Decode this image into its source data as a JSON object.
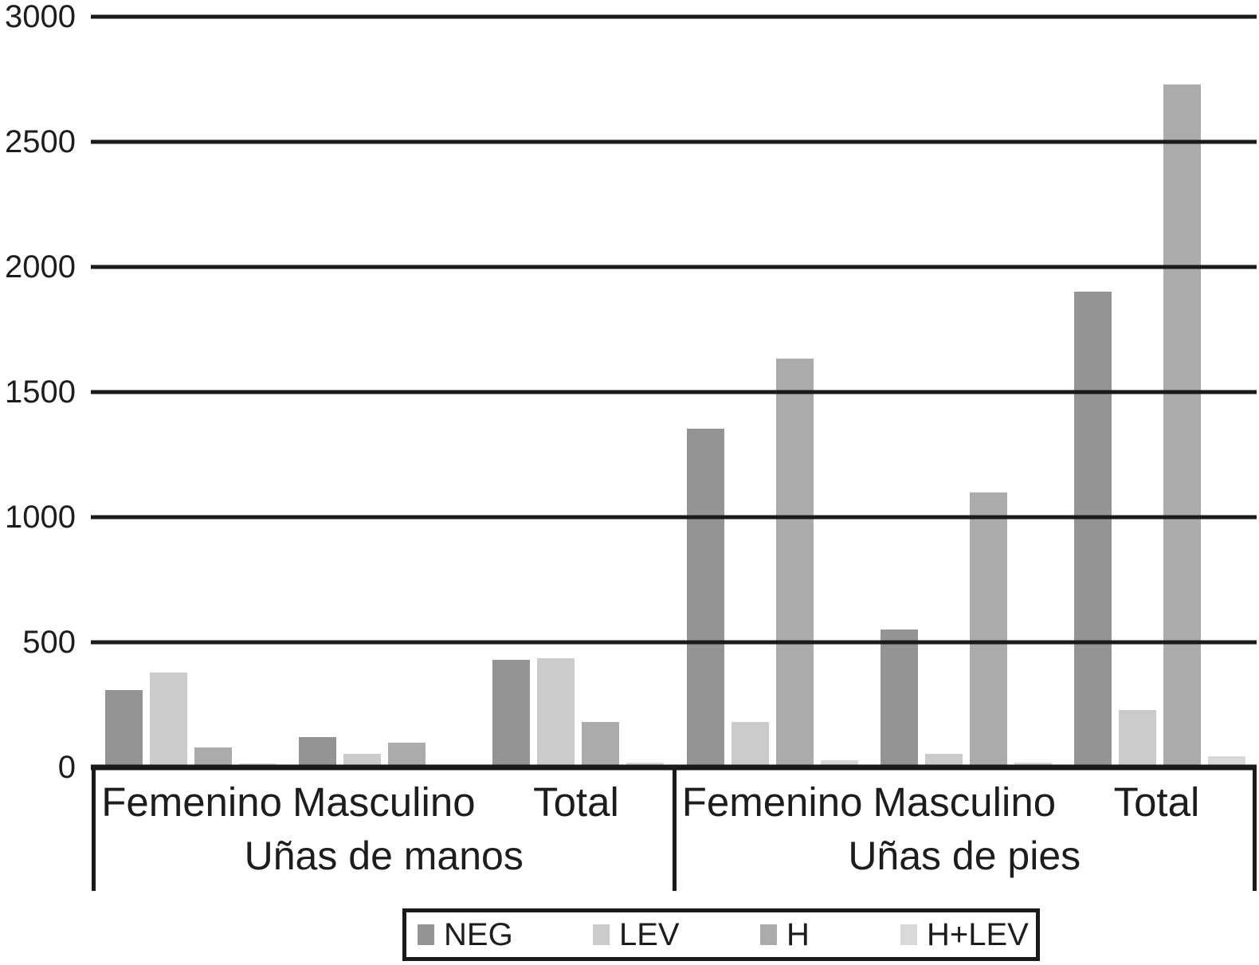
{
  "chart_data": {
    "type": "bar",
    "title": "",
    "xlabel": "",
    "ylabel": "",
    "ylim": [
      0,
      3000
    ],
    "yticks": [
      0,
      500,
      1000,
      1500,
      2000,
      2500,
      3000
    ],
    "ytick_labels": [
      "0",
      "500",
      "1000",
      "1500",
      "2000",
      "2500",
      "3000"
    ],
    "grid": "horizontal",
    "legend_position": "bottom",
    "groups": [
      {
        "label": "Uñas de manos",
        "categories": [
          "Femenino",
          "Masculino",
          "Total"
        ]
      },
      {
        "label": "Uñas de pies",
        "categories": [
          "Femenino",
          "Masculino",
          "Total"
        ]
      }
    ],
    "series": [
      {
        "name": "NEG",
        "color": "#949496",
        "values": [
          310,
          120,
          430,
          1355,
          550,
          1900
        ]
      },
      {
        "name": "LEV",
        "color": "#cbcbcd",
        "values": [
          380,
          55,
          435,
          180,
          55,
          230
        ]
      },
      {
        "name": "H",
        "color": "#ababad",
        "values": [
          80,
          100,
          180,
          1635,
          1100,
          2730
        ]
      },
      {
        "name": "H+LEV",
        "color": "#d9d9db",
        "values": [
          15,
          8,
          20,
          30,
          20,
          45
        ]
      }
    ],
    "colors": {
      "line": "#1a1a1a",
      "text": "#1d1d1f",
      "background": "#ffffff"
    }
  }
}
